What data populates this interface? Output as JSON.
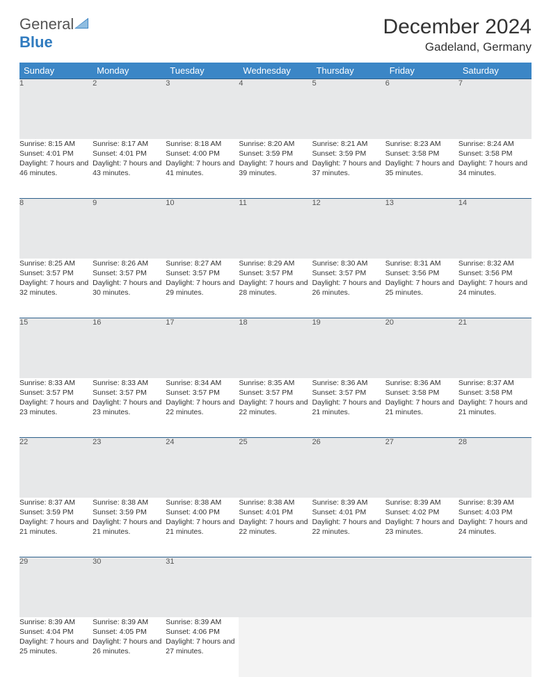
{
  "brand": {
    "part1": "General",
    "part2": "Blue"
  },
  "title": "December 2024",
  "location": "Gadeland, Germany",
  "colors": {
    "header_bg": "#3b86c6",
    "row_divider": "#2b5e8a",
    "daynum_bg": "#e7e8e9",
    "text": "#333333"
  },
  "weekdays": [
    "Sunday",
    "Monday",
    "Tuesday",
    "Wednesday",
    "Thursday",
    "Friday",
    "Saturday"
  ],
  "days": [
    {
      "n": "1",
      "sr": "Sunrise: 8:15 AM",
      "ss": "Sunset: 4:01 PM",
      "dl": "Daylight: 7 hours and 46 minutes."
    },
    {
      "n": "2",
      "sr": "Sunrise: 8:17 AM",
      "ss": "Sunset: 4:01 PM",
      "dl": "Daylight: 7 hours and 43 minutes."
    },
    {
      "n": "3",
      "sr": "Sunrise: 8:18 AM",
      "ss": "Sunset: 4:00 PM",
      "dl": "Daylight: 7 hours and 41 minutes."
    },
    {
      "n": "4",
      "sr": "Sunrise: 8:20 AM",
      "ss": "Sunset: 3:59 PM",
      "dl": "Daylight: 7 hours and 39 minutes."
    },
    {
      "n": "5",
      "sr": "Sunrise: 8:21 AM",
      "ss": "Sunset: 3:59 PM",
      "dl": "Daylight: 7 hours and 37 minutes."
    },
    {
      "n": "6",
      "sr": "Sunrise: 8:23 AM",
      "ss": "Sunset: 3:58 PM",
      "dl": "Daylight: 7 hours and 35 minutes."
    },
    {
      "n": "7",
      "sr": "Sunrise: 8:24 AM",
      "ss": "Sunset: 3:58 PM",
      "dl": "Daylight: 7 hours and 34 minutes."
    },
    {
      "n": "8",
      "sr": "Sunrise: 8:25 AM",
      "ss": "Sunset: 3:57 PM",
      "dl": "Daylight: 7 hours and 32 minutes."
    },
    {
      "n": "9",
      "sr": "Sunrise: 8:26 AM",
      "ss": "Sunset: 3:57 PM",
      "dl": "Daylight: 7 hours and 30 minutes."
    },
    {
      "n": "10",
      "sr": "Sunrise: 8:27 AM",
      "ss": "Sunset: 3:57 PM",
      "dl": "Daylight: 7 hours and 29 minutes."
    },
    {
      "n": "11",
      "sr": "Sunrise: 8:29 AM",
      "ss": "Sunset: 3:57 PM",
      "dl": "Daylight: 7 hours and 28 minutes."
    },
    {
      "n": "12",
      "sr": "Sunrise: 8:30 AM",
      "ss": "Sunset: 3:57 PM",
      "dl": "Daylight: 7 hours and 26 minutes."
    },
    {
      "n": "13",
      "sr": "Sunrise: 8:31 AM",
      "ss": "Sunset: 3:56 PM",
      "dl": "Daylight: 7 hours and 25 minutes."
    },
    {
      "n": "14",
      "sr": "Sunrise: 8:32 AM",
      "ss": "Sunset: 3:56 PM",
      "dl": "Daylight: 7 hours and 24 minutes."
    },
    {
      "n": "15",
      "sr": "Sunrise: 8:33 AM",
      "ss": "Sunset: 3:57 PM",
      "dl": "Daylight: 7 hours and 23 minutes."
    },
    {
      "n": "16",
      "sr": "Sunrise: 8:33 AM",
      "ss": "Sunset: 3:57 PM",
      "dl": "Daylight: 7 hours and 23 minutes."
    },
    {
      "n": "17",
      "sr": "Sunrise: 8:34 AM",
      "ss": "Sunset: 3:57 PM",
      "dl": "Daylight: 7 hours and 22 minutes."
    },
    {
      "n": "18",
      "sr": "Sunrise: 8:35 AM",
      "ss": "Sunset: 3:57 PM",
      "dl": "Daylight: 7 hours and 22 minutes."
    },
    {
      "n": "19",
      "sr": "Sunrise: 8:36 AM",
      "ss": "Sunset: 3:57 PM",
      "dl": "Daylight: 7 hours and 21 minutes."
    },
    {
      "n": "20",
      "sr": "Sunrise: 8:36 AM",
      "ss": "Sunset: 3:58 PM",
      "dl": "Daylight: 7 hours and 21 minutes."
    },
    {
      "n": "21",
      "sr": "Sunrise: 8:37 AM",
      "ss": "Sunset: 3:58 PM",
      "dl": "Daylight: 7 hours and 21 minutes."
    },
    {
      "n": "22",
      "sr": "Sunrise: 8:37 AM",
      "ss": "Sunset: 3:59 PM",
      "dl": "Daylight: 7 hours and 21 minutes."
    },
    {
      "n": "23",
      "sr": "Sunrise: 8:38 AM",
      "ss": "Sunset: 3:59 PM",
      "dl": "Daylight: 7 hours and 21 minutes."
    },
    {
      "n": "24",
      "sr": "Sunrise: 8:38 AM",
      "ss": "Sunset: 4:00 PM",
      "dl": "Daylight: 7 hours and 21 minutes."
    },
    {
      "n": "25",
      "sr": "Sunrise: 8:38 AM",
      "ss": "Sunset: 4:01 PM",
      "dl": "Daylight: 7 hours and 22 minutes."
    },
    {
      "n": "26",
      "sr": "Sunrise: 8:39 AM",
      "ss": "Sunset: 4:01 PM",
      "dl": "Daylight: 7 hours and 22 minutes."
    },
    {
      "n": "27",
      "sr": "Sunrise: 8:39 AM",
      "ss": "Sunset: 4:02 PM",
      "dl": "Daylight: 7 hours and 23 minutes."
    },
    {
      "n": "28",
      "sr": "Sunrise: 8:39 AM",
      "ss": "Sunset: 4:03 PM",
      "dl": "Daylight: 7 hours and 24 minutes."
    },
    {
      "n": "29",
      "sr": "Sunrise: 8:39 AM",
      "ss": "Sunset: 4:04 PM",
      "dl": "Daylight: 7 hours and 25 minutes."
    },
    {
      "n": "30",
      "sr": "Sunrise: 8:39 AM",
      "ss": "Sunset: 4:05 PM",
      "dl": "Daylight: 7 hours and 26 minutes."
    },
    {
      "n": "31",
      "sr": "Sunrise: 8:39 AM",
      "ss": "Sunset: 4:06 PM",
      "dl": "Daylight: 7 hours and 27 minutes."
    }
  ]
}
